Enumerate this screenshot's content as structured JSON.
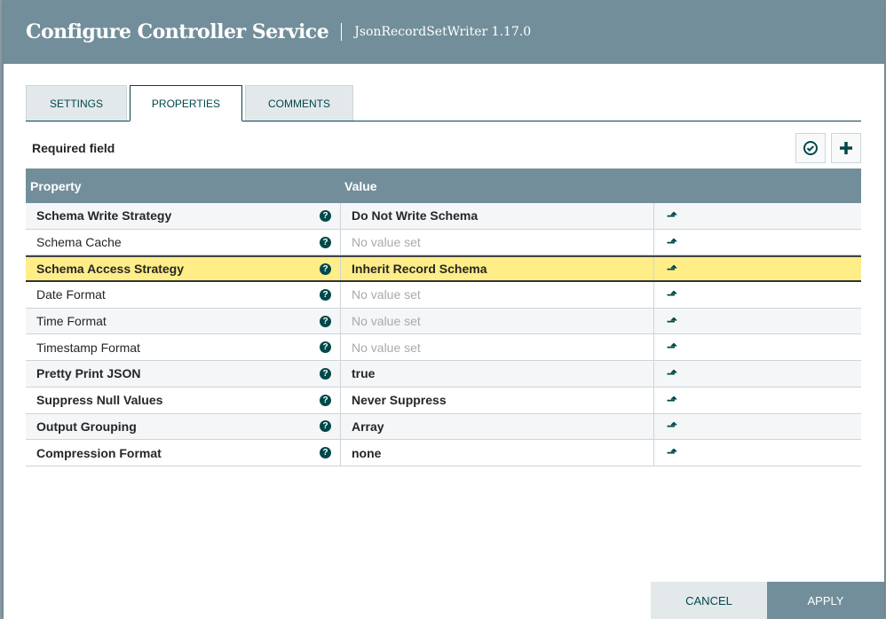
{
  "header": {
    "title": "Configure Controller Service",
    "subtitle": "JsonRecordSetWriter 1.17.0"
  },
  "tabs": [
    {
      "label": "SETTINGS"
    },
    {
      "label": "PROPERTIES"
    },
    {
      "label": "COMMENTS"
    }
  ],
  "required_label": "Required field",
  "table": {
    "headers": {
      "property": "Property",
      "value": "Value"
    },
    "rows": [
      {
        "property": "Schema Write Strategy",
        "value": "Do Not Write Schema",
        "required": true,
        "set": true
      },
      {
        "property": "Schema Cache",
        "value": "No value set",
        "required": false,
        "set": false
      },
      {
        "property": "Schema Access Strategy",
        "value": "Inherit Record Schema",
        "required": true,
        "set": true,
        "selected": true
      },
      {
        "property": "Date Format",
        "value": "No value set",
        "required": false,
        "set": false
      },
      {
        "property": "Time Format",
        "value": "No value set",
        "required": false,
        "set": false
      },
      {
        "property": "Timestamp Format",
        "value": "No value set",
        "required": false,
        "set": false
      },
      {
        "property": "Pretty Print JSON",
        "value": "true",
        "required": true,
        "set": true
      },
      {
        "property": "Suppress Null Values",
        "value": "Never Suppress",
        "required": true,
        "set": true
      },
      {
        "property": "Output Grouping",
        "value": "Array",
        "required": true,
        "set": true
      },
      {
        "property": "Compression Format",
        "value": "none",
        "required": true,
        "set": true
      }
    ]
  },
  "buttons": {
    "cancel": "CANCEL",
    "apply": "APPLY"
  }
}
